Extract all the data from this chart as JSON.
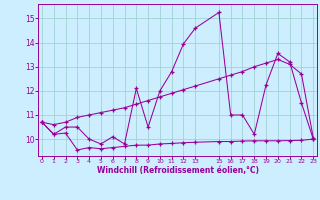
{
  "xlabel": "Windchill (Refroidissement éolien,°C)",
  "bg_color": "#cceeff",
  "grid_color": "#99cccc",
  "line_color": "#990099",
  "x_ticks": [
    0,
    1,
    2,
    3,
    4,
    5,
    6,
    7,
    8,
    9,
    10,
    11,
    12,
    13,
    15,
    16,
    17,
    18,
    19,
    20,
    21,
    22,
    23
  ],
  "xlim": [
    -0.3,
    23.3
  ],
  "ylim": [
    9.3,
    15.6
  ],
  "y_ticks": [
    10,
    11,
    12,
    13,
    14,
    15
  ],
  "line1_x": [
    0,
    1,
    2,
    3,
    4,
    5,
    6,
    7,
    8,
    9,
    10,
    11,
    12,
    13,
    15,
    16,
    17,
    18,
    19,
    20,
    21,
    22,
    23
  ],
  "line1_y": [
    10.7,
    10.2,
    10.5,
    10.5,
    10.0,
    9.8,
    10.1,
    9.8,
    12.1,
    10.5,
    12.0,
    12.8,
    13.95,
    14.6,
    15.25,
    11.0,
    11.0,
    10.2,
    12.25,
    13.55,
    13.2,
    11.5,
    10.0
  ],
  "line2_x": [
    0,
    1,
    2,
    3,
    4,
    5,
    6,
    7,
    8,
    9,
    10,
    11,
    12,
    13,
    15,
    16,
    17,
    18,
    19,
    20,
    21,
    22,
    23
  ],
  "line2_y": [
    10.7,
    10.6,
    10.7,
    10.9,
    11.0,
    11.1,
    11.2,
    11.3,
    11.45,
    11.6,
    11.75,
    11.9,
    12.05,
    12.2,
    12.5,
    12.65,
    12.8,
    13.0,
    13.15,
    13.3,
    13.1,
    12.7,
    10.05
  ],
  "line3_x": [
    0,
    1,
    2,
    3,
    4,
    5,
    6,
    7,
    8,
    9,
    10,
    11,
    12,
    13,
    15,
    16,
    17,
    18,
    19,
    20,
    21,
    22,
    23
  ],
  "line3_y": [
    10.7,
    10.2,
    10.25,
    9.55,
    9.65,
    9.6,
    9.65,
    9.7,
    9.75,
    9.75,
    9.8,
    9.82,
    9.85,
    9.87,
    9.9,
    9.9,
    9.92,
    9.93,
    9.93,
    9.93,
    9.94,
    9.95,
    10.0
  ]
}
